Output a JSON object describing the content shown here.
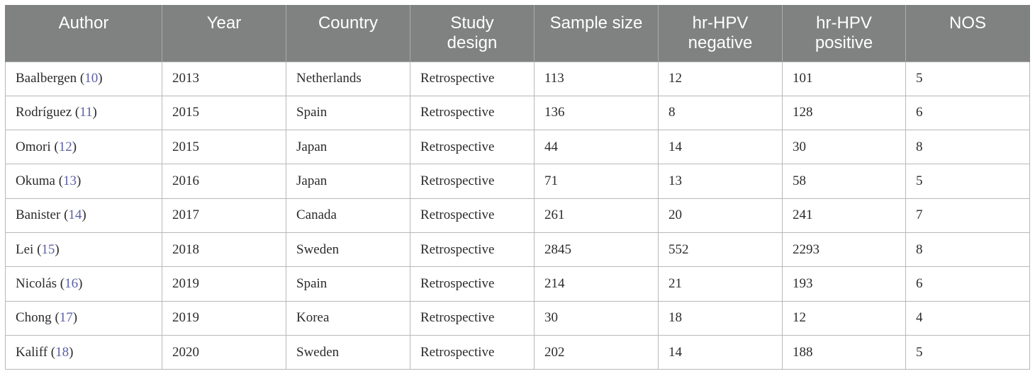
{
  "table": {
    "headers": [
      "Author",
      "Year",
      "Country",
      "Study design",
      "Sample size",
      "hr-HPV negative",
      "hr-HPV positive",
      "NOS"
    ],
    "header_lines": [
      [
        "Author"
      ],
      [
        "Year"
      ],
      [
        "Country"
      ],
      [
        "Study",
        "design"
      ],
      [
        "Sample size"
      ],
      [
        "hr-HPV",
        "negative"
      ],
      [
        "hr-HPV",
        "positive"
      ],
      [
        "NOS"
      ]
    ],
    "rows": [
      {
        "author": "Baalbergen",
        "ref": "10",
        "year": "2013",
        "country": "Netherlands",
        "design": "Retrospective",
        "sample": "113",
        "neg": "12",
        "pos": "101",
        "nos": "5"
      },
      {
        "author": "Rodríguez",
        "ref": "11",
        "year": "2015",
        "country": "Spain",
        "design": "Retrospective",
        "sample": "136",
        "neg": "8",
        "pos": "128",
        "nos": "6"
      },
      {
        "author": "Omori",
        "ref": "12",
        "year": "2015",
        "country": "Japan",
        "design": "Retrospective",
        "sample": "44",
        "neg": "14",
        "pos": "30",
        "nos": "8"
      },
      {
        "author": "Okuma",
        "ref": "13",
        "year": "2016",
        "country": "Japan",
        "design": "Retrospective",
        "sample": "71",
        "neg": "13",
        "pos": "58",
        "nos": "5"
      },
      {
        "author": "Banister",
        "ref": "14",
        "year": "2017",
        "country": "Canada",
        "design": "Retrospective",
        "sample": "261",
        "neg": "20",
        "pos": "241",
        "nos": "7"
      },
      {
        "author": "Lei",
        "ref": "15",
        "year": "2018",
        "country": "Sweden",
        "design": "Retrospective",
        "sample": "2845",
        "neg": "552",
        "pos": "2293",
        "nos": "8"
      },
      {
        "author": "Nicolás",
        "ref": "16",
        "year": "2019",
        "country": "Spain",
        "design": "Retrospective",
        "sample": "214",
        "neg": "21",
        "pos": "193",
        "nos": "6"
      },
      {
        "author": "Chong",
        "ref": "17",
        "year": "2019",
        "country": "Korea",
        "design": "Retrospective",
        "sample": "30",
        "neg": "18",
        "pos": "12",
        "nos": "4"
      },
      {
        "author": "Kaliff",
        "ref": "18",
        "year": "2020",
        "country": "Sweden",
        "design": "Retrospective",
        "sample": "202",
        "neg": "14",
        "pos": "188",
        "nos": "5"
      }
    ],
    "colors": {
      "header_bg": "#7f8280",
      "header_text": "#ffffff",
      "reference_link": "#5a5fa8",
      "grid": "#b8b8b8"
    }
  }
}
